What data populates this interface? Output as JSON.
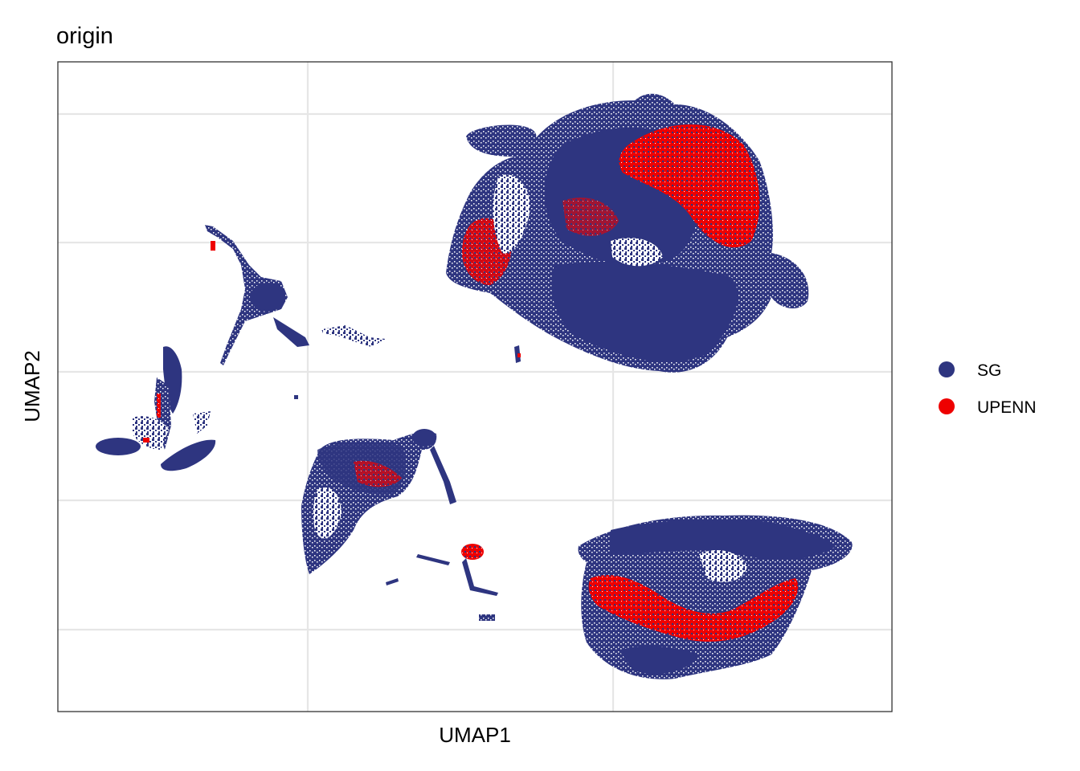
{
  "chart_data": {
    "type": "scatter",
    "title": "origin",
    "xlabel": "UMAP1",
    "ylabel": "UMAP2",
    "tick_labels_shown": false,
    "grid": true,
    "legend_placement": "right",
    "legend": [
      {
        "name": "SG",
        "color": "#2E3580"
      },
      {
        "name": "UPENN",
        "color": "#EE0000"
      }
    ],
    "series": [
      {
        "name": "SG",
        "color": "#2E3580"
      },
      {
        "name": "UPENN",
        "color": "#EE0000"
      }
    ]
  }
}
